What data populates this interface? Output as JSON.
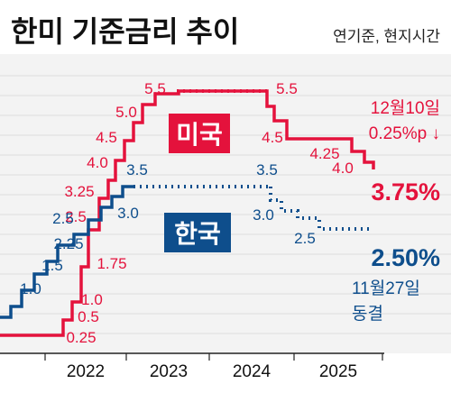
{
  "chart_data": {
    "type": "line",
    "title": "한미 기준금리 추이",
    "subtitle": "연기준, 현지시간",
    "x_tick_labels": [
      "2022",
      "2023",
      "2024",
      "2025"
    ],
    "ylim": [
      0,
      5.75
    ],
    "grid": true,
    "series": [
      {
        "name": "미국",
        "color": "#e4123c",
        "step_values": [
          0.25,
          0.5,
          1.0,
          1.75,
          2.5,
          3.25,
          4.0,
          4.5,
          5.0,
          5.5,
          5.5,
          5.5,
          5.5,
          5.5,
          5.5,
          5.5,
          5.5,
          5.5,
          5.5,
          5.5,
          5.5,
          5.5,
          5.5,
          5.5,
          5.5,
          5.5,
          5.5,
          5.0,
          4.75,
          4.5,
          4.5,
          4.5,
          4.5,
          4.5,
          4.5,
          4.5,
          4.5,
          4.5,
          4.25,
          4.0,
          3.75
        ],
        "labels": [
          {
            "text": "0.25",
            "value": 0.25
          },
          {
            "text": "0.5",
            "value": 0.5
          },
          {
            "text": "1.0",
            "value": 1.0
          },
          {
            "text": "1.75",
            "value": 1.75
          },
          {
            "text": "2.5",
            "value": 2.5
          },
          {
            "text": "3.25",
            "value": 3.25
          },
          {
            "text": "4.0",
            "value": 4.0
          },
          {
            "text": "4.5",
            "value": 4.5
          },
          {
            "text": "5.0",
            "value": 5.0
          },
          {
            "text": "5.5",
            "value": 5.5
          },
          {
            "text": "5.5",
            "value": 5.5
          },
          {
            "text": "4.5",
            "value": 4.5
          },
          {
            "text": "4.25",
            "value": 4.25
          },
          {
            "text": "4.0",
            "value": 4.0
          }
        ],
        "final_label": "3.75%",
        "annotation": [
          "12월10일",
          "0.25%p ↓"
        ]
      },
      {
        "name": "한국",
        "color": "#0e4e8c",
        "step_values": [
          1.0,
          1.25,
          1.5,
          1.75,
          2.25,
          2.5,
          3.0,
          3.25,
          3.5,
          3.5,
          3.5,
          3.5,
          3.5,
          3.5,
          3.5,
          3.5,
          3.5,
          3.5,
          3.5,
          3.5,
          3.5,
          3.5,
          3.5,
          3.25,
          3.0,
          2.75,
          2.75,
          2.75,
          2.5,
          2.5,
          2.5,
          2.5
        ],
        "labels": [
          {
            "text": "1.0",
            "value": 1.0
          },
          {
            "text": "1.5",
            "value": 1.5
          },
          {
            "text": "2.25",
            "value": 2.25
          },
          {
            "text": "2.5",
            "value": 2.5
          },
          {
            "text": "3.0",
            "value": 3.0
          },
          {
            "text": "3.5",
            "value": 3.5
          },
          {
            "text": "3.5",
            "value": 3.5
          },
          {
            "text": "3.0",
            "value": 3.0
          },
          {
            "text": "2.5",
            "value": 2.5
          }
        ],
        "final_label": "2.50%",
        "annotation": [
          "11월27일",
          "동결"
        ]
      }
    ]
  }
}
